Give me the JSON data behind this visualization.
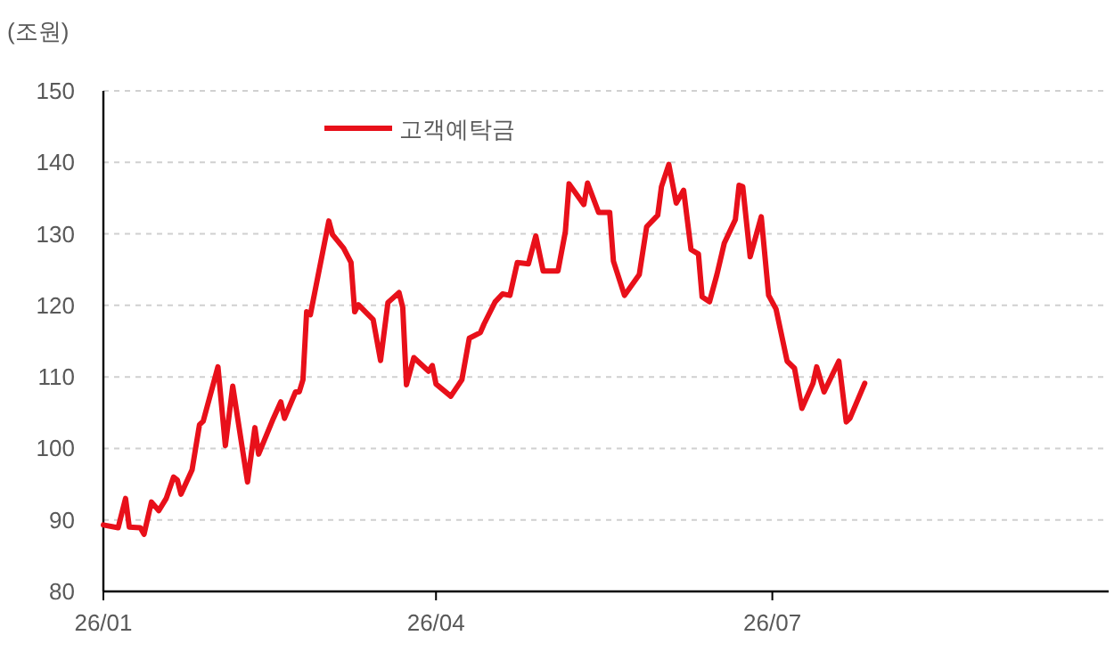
{
  "chart_data": {
    "type": "line",
    "ylabel": "(조원)",
    "legend": "top left",
    "grid": "y",
    "line_style": "solid",
    "xlim": [
      "--01-01",
      "--09-30"
    ],
    "xticks": [
      {
        "value": "--01-01",
        "label": "26/01"
      },
      {
        "value": "--04-01",
        "label": "26/04"
      },
      {
        "value": "--07-01",
        "label": "26/07"
      }
    ],
    "ylim": [
      80,
      150
    ],
    "yticks": [
      80,
      90,
      100,
      110,
      120,
      130,
      140,
      150
    ],
    "x": [
      "--01-01",
      "--01-05",
      "--01-07",
      "--01-08",
      "--01-11",
      "--01-12",
      "--01-14",
      "--01-16",
      "--01-18",
      "--01-20",
      "--01-21",
      "--01-22",
      "--01-25",
      "--01-27",
      "--01-28",
      "--02-01",
      "--02-03",
      "--02-05",
      "--02-09",
      "--02-11",
      "--02-12",
      "--02-16",
      "--02-18",
      "--02-19",
      "--02-22",
      "--02-23",
      "--02-24",
      "--02-25",
      "--02-26",
      "--03-03",
      "--03-04",
      "--03-07",
      "--03-09",
      "--03-10",
      "--03-11",
      "--03-15",
      "--03-17",
      "--03-19",
      "--03-22",
      "--03-23",
      "--03-24",
      "--03-26",
      "--03-30",
      "--03-31",
      "--04-01",
      "--04-05",
      "--04-08",
      "--04-10",
      "--04-13",
      "--04-14",
      "--04-17",
      "--04-19",
      "--04-21",
      "--04-23",
      "--04-26",
      "--04-28",
      "--04-30",
      "--05-04",
      "--05-06",
      "--05-07",
      "--05-11",
      "--05-12",
      "--05-15",
      "--05-18",
      "--05-19",
      "--05-22",
      "--05-26",
      "--05-28",
      "--05-31",
      "--06-01",
      "--06-03",
      "--06-05",
      "--06-07",
      "--06-09",
      "--06-11",
      "--06-12",
      "--06-14",
      "--06-16",
      "--06-18",
      "--06-21",
      "--06-22",
      "--06-23",
      "--06-25",
      "--06-28",
      "--06-30",
      "--07-02",
      "--07-05",
      "--07-07",
      "--07-09",
      "--07-12",
      "--07-13",
      "--07-15",
      "--07-19",
      "--07-21",
      "--07-22",
      "--07-26"
    ],
    "series": [
      {
        "name": "고객예탁금",
        "color": "#e8101a",
        "values": [
          89.3,
          88.9,
          93,
          89,
          88.9,
          88,
          92.5,
          91.3,
          93,
          96,
          95.6,
          93.6,
          97,
          103.3,
          103.8,
          111.4,
          100.4,
          108.7,
          95.3,
          102.9,
          99.2,
          104.2,
          106.5,
          104.2,
          107.9,
          107.9,
          109.6,
          119.1,
          118.7,
          131.8,
          129.9,
          128,
          126,
          119.1,
          120.1,
          118,
          112.3,
          120.4,
          121.8,
          119.7,
          108.9,
          112.7,
          110.8,
          111.6,
          109,
          107.3,
          109.6,
          115.4,
          116.2,
          117.4,
          120.5,
          121.6,
          121.4,
          126,
          125.8,
          129.7,
          124.8,
          124.8,
          130.3,
          137,
          134.1,
          137.1,
          133,
          133,
          126.2,
          121.4,
          124.3,
          131,
          132.6,
          136.6,
          139.7,
          134.3,
          136.1,
          127.8,
          127.2,
          121.2,
          120.5,
          124.3,
          128.7,
          132,
          136.8,
          136.6,
          126.8,
          132.4,
          121.4,
          119.5,
          112.2,
          111.2,
          105.6,
          109.1,
          111.4,
          107.9,
          112.2,
          103.7,
          104.2,
          109.1
        ]
      }
    ]
  }
}
